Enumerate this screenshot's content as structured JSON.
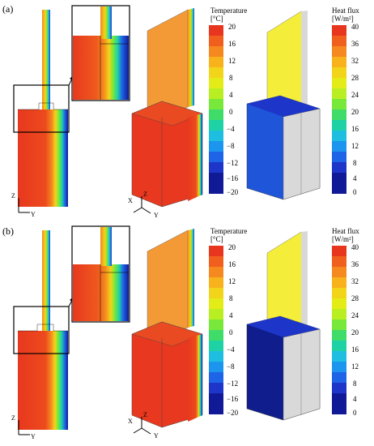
{
  "panels": [
    {
      "label": "(a)",
      "temperature_legend": {
        "title": "Temperature",
        "unit": "[°C]",
        "ticks": [
          "20",
          "16",
          "12",
          "8",
          "4",
          "0",
          "−4",
          "−8",
          "−12",
          "−16",
          "−20"
        ]
      },
      "heat_flux_legend": {
        "title": "Heat flux",
        "unit": "[W/m²]",
        "ticks": [
          "40",
          "36",
          "32",
          "28",
          "24",
          "20",
          "16",
          "12",
          "8",
          "4",
          "0"
        ]
      },
      "axes_2d": {
        "z": "Z",
        "y": "Y"
      },
      "axes_3d": {
        "x": "X",
        "z": "Z",
        "y": "Y"
      }
    },
    {
      "label": "(b)",
      "temperature_legend": {
        "title": "Temperature",
        "unit": "[°C]",
        "ticks": [
          "20",
          "16",
          "12",
          "8",
          "4",
          "0",
          "−4",
          "−8",
          "−12",
          "−16",
          "−20"
        ]
      },
      "heat_flux_legend": {
        "title": "Heat flux",
        "unit": "[W/m²]",
        "ticks": [
          "40",
          "36",
          "32",
          "28",
          "24",
          "20",
          "16",
          "12",
          "8",
          "4",
          "0"
        ]
      },
      "axes_2d": {
        "z": "Z",
        "y": "Y"
      },
      "axes_3d": {
        "x": "X",
        "z": "Z",
        "y": "Y"
      }
    }
  ],
  "colors": {
    "temperature_scale": [
      "#e8361e",
      "#f05f1d",
      "#f5881e",
      "#f7b21c",
      "#f2d51a",
      "#e4ec17",
      "#b9ef22",
      "#78e83a",
      "#3fdc6a",
      "#1ed2a6",
      "#1ebee0",
      "#1c95ef",
      "#1e64e6",
      "#1d35c8",
      "#111a96"
    ],
    "wall_red": "#e8381f",
    "glass_orange": "#f2a23a",
    "glass_yellow": "#f4ed3a",
    "flux_blue_a": "#1f55d9",
    "flux_blue_b": "#0f1e8c",
    "grey": "#d4d4d4"
  }
}
